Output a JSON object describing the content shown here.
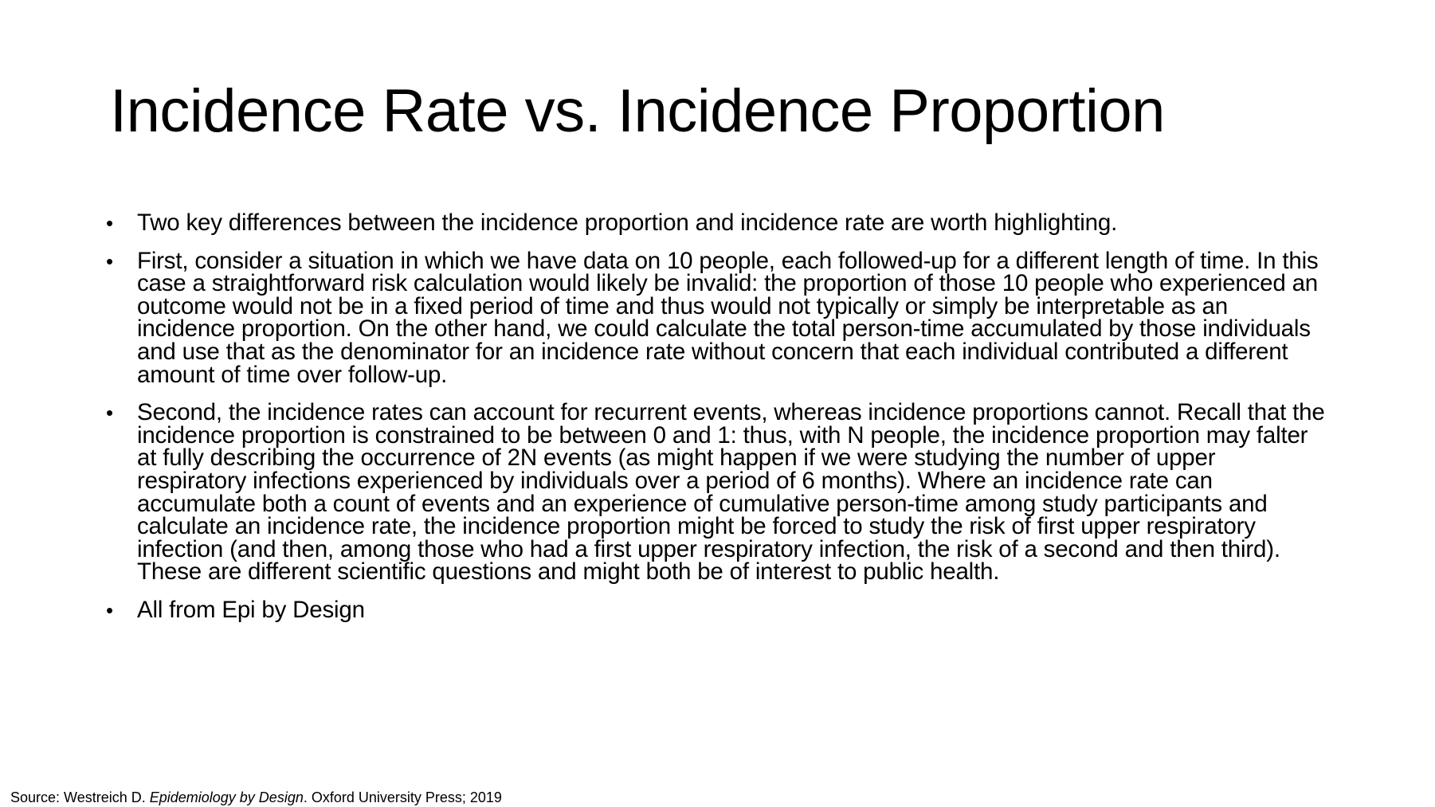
{
  "slide": {
    "title": "Incidence Rate vs. Incidence Proportion",
    "bullets": [
      "Two key differences between the incidence proportion and incidence rate are worth highlighting.",
      "First, consider a situation in which we have data on 10 people, each followed-up for a different length of time. In this case a straightforward risk calculation would likely be invalid: the proportion of those 10 people who experienced an outcome would not be in a fixed period of time and thus would not typically or simply be interpretable as an incidence proportion. On the other hand, we could calculate the total person-time accumulated by those individuals and use that as the denominator for an incidence rate without concern that each individual contributed a different amount of time over follow-up.",
      "Second, the incidence rates can account for recurrent events, whereas incidence proportions cannot. Recall that the incidence proportion is constrained to be between 0 and 1: thus, with N people, the incidence proportion may falter at fully describing the occurrence of 2N events (as might happen if we were studying the number of upper respiratory infections experienced by individuals over a period of 6 months). Where an incidence rate can accumulate both a count of events and an experience of cumulative person-time among study participants and calculate an incidence rate, the incidence proportion might be forced to study the risk of first upper respiratory infection (and then, among those who had a first upper respiratory infection, the risk of a second and then third). These are different scientific questions and might both be of interest to public health.",
      "All from Epi by Design"
    ],
    "source": {
      "prefix": "Source: Westreich D. ",
      "book": "Epidemiology by Design",
      "suffix": ". Oxford University Press; 2019"
    }
  }
}
